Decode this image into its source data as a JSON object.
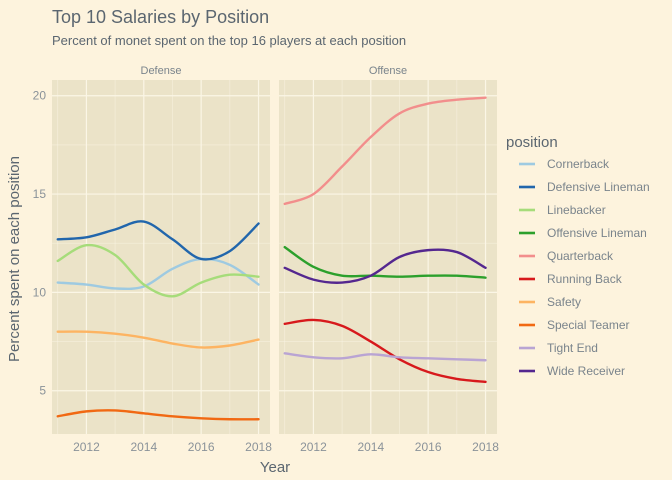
{
  "chart_data": {
    "type": "line",
    "title": "Top 10 Salaries by Position",
    "subtitle": "Percent of monet spent on the top 16 players at each position",
    "xlabel": "Year",
    "ylabel": "Percent spent on each position",
    "xlim": [
      2010.8,
      2018.4
    ],
    "ylim": [
      2.8,
      20.8
    ],
    "xticks": [
      2012,
      2014,
      2016,
      2018
    ],
    "xtick_labels": [
      "2012",
      "2014",
      "2016",
      "2018"
    ],
    "yticks": [
      5,
      10,
      15,
      20
    ],
    "ytick_labels": [
      "5",
      "10",
      "15",
      "20"
    ],
    "legend_title": "position",
    "legend_position": "right",
    "grid": true,
    "panels": [
      {
        "name": "Defense",
        "series": [
          {
            "name": "Cornerback",
            "color": "#9ecae1",
            "x": [
              2011,
              2012,
              2013,
              2014,
              2015,
              2016,
              2017,
              2018
            ],
            "y": [
              10.5,
              10.4,
              10.2,
              10.3,
              11.2,
              11.7,
              11.4,
              10.4
            ]
          },
          {
            "name": "Defensive Lineman",
            "color": "#2166ac",
            "x": [
              2011,
              2012,
              2013,
              2014,
              2015,
              2016,
              2017,
              2018
            ],
            "y": [
              12.7,
              12.8,
              13.2,
              13.6,
              12.7,
              11.7,
              12.1,
              13.5
            ]
          },
          {
            "name": "Linebacker",
            "color": "#a6dc7a",
            "x": [
              2011,
              2012,
              2013,
              2014,
              2015,
              2016,
              2017,
              2018
            ],
            "y": [
              11.6,
              12.4,
              11.9,
              10.4,
              9.8,
              10.5,
              10.9,
              10.8
            ]
          },
          {
            "name": "Safety",
            "color": "#fdb462",
            "x": [
              2011,
              2012,
              2013,
              2014,
              2015,
              2016,
              2017,
              2018
            ],
            "y": [
              8.0,
              8.0,
              7.9,
              7.7,
              7.4,
              7.2,
              7.3,
              7.6
            ]
          },
          {
            "name": "Special Teamer",
            "color": "#f16913",
            "x": [
              2011,
              2012,
              2013,
              2014,
              2015,
              2016,
              2017,
              2018
            ],
            "y": [
              3.7,
              3.95,
              4.0,
              3.85,
              3.7,
              3.6,
              3.55,
              3.55
            ]
          }
        ]
      },
      {
        "name": "Offense",
        "series": [
          {
            "name": "Offensive Lineman",
            "color": "#2ca02c",
            "x": [
              2011,
              2012,
              2013,
              2014,
              2015,
              2016,
              2017,
              2018
            ],
            "y": [
              12.3,
              11.3,
              10.85,
              10.85,
              10.8,
              10.85,
              10.85,
              10.75
            ]
          },
          {
            "name": "Quarterback",
            "color": "#f28e8c",
            "x": [
              2011,
              2012,
              2013,
              2014,
              2015,
              2016,
              2017,
              2018
            ],
            "y": [
              14.5,
              15.0,
              16.4,
              17.9,
              19.1,
              19.6,
              19.8,
              19.9
            ]
          },
          {
            "name": "Running Back",
            "color": "#d7191c",
            "x": [
              2011,
              2012,
              2013,
              2014,
              2015,
              2016,
              2017,
              2018
            ],
            "y": [
              8.4,
              8.6,
              8.3,
              7.5,
              6.6,
              5.95,
              5.6,
              5.45
            ]
          },
          {
            "name": "Tight End",
            "color": "#b9a4d3",
            "x": [
              2011,
              2012,
              2013,
              2014,
              2015,
              2016,
              2017,
              2018
            ],
            "y": [
              6.9,
              6.7,
              6.65,
              6.85,
              6.7,
              6.65,
              6.6,
              6.55
            ]
          },
          {
            "name": "Wide Receiver",
            "color": "#54278f",
            "x": [
              2011,
              2012,
              2013,
              2014,
              2015,
              2016,
              2017,
              2018
            ],
            "y": [
              11.25,
              10.65,
              10.5,
              10.85,
              11.8,
              12.15,
              12.05,
              11.25
            ]
          }
        ]
      }
    ],
    "legend": [
      {
        "name": "Cornerback",
        "color": "#9ecae1"
      },
      {
        "name": "Defensive Lineman",
        "color": "#2166ac"
      },
      {
        "name": "Linebacker",
        "color": "#a6dc7a"
      },
      {
        "name": "Offensive Lineman",
        "color": "#2ca02c"
      },
      {
        "name": "Quarterback",
        "color": "#f28e8c"
      },
      {
        "name": "Running Back",
        "color": "#d7191c"
      },
      {
        "name": "Safety",
        "color": "#fdb462"
      },
      {
        "name": "Special Teamer",
        "color": "#f16913"
      },
      {
        "name": "Tight End",
        "color": "#b9a4d3"
      },
      {
        "name": "Wide Receiver",
        "color": "#54278f"
      }
    ]
  },
  "colors": {
    "background": "#fdf3dd",
    "panel": "#ebe3c8",
    "grid": "#fbf6e6",
    "text": "#5b6670"
  }
}
